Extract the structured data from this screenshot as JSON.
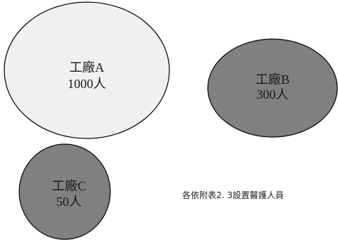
{
  "factories": [
    {
      "name": "工廠A",
      "count": "1000人",
      "fill": "#f0f0f0"
    },
    {
      "name": "工廠B",
      "count": "300人",
      "fill": "#808080"
    },
    {
      "name": "工廠C",
      "count": "50人",
      "fill": "#808080"
    }
  ],
  "note": "各依附表2. 3設置醫護人員"
}
